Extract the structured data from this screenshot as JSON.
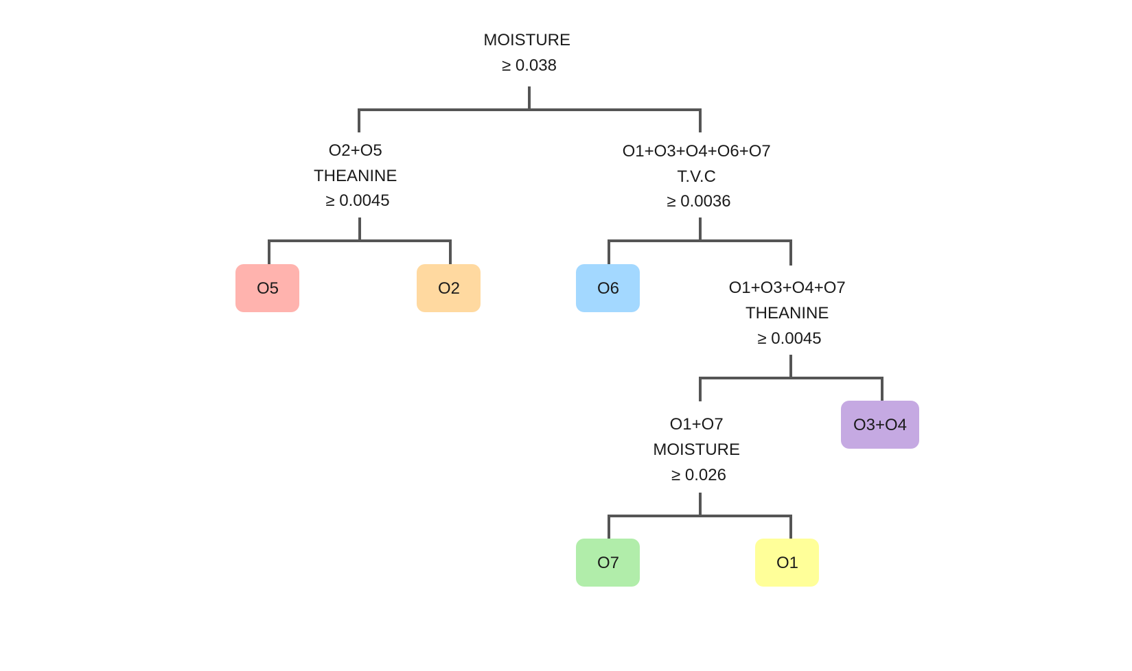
{
  "diagram": {
    "type": "decision-tree",
    "line_color": "#555555",
    "splits": [
      {
        "id": "root",
        "lines": [
          "MOISTURE",
          "≥ 0.038"
        ]
      },
      {
        "id": "left",
        "lines": [
          "O2+O5",
          "THEANINE",
          "≥ 0.0045"
        ]
      },
      {
        "id": "right",
        "lines": [
          "O1+O3+O4+O6+O7",
          "T.V.C",
          "≥ 0.0036"
        ]
      },
      {
        "id": "right-right",
        "lines": [
          "O1+O3+O4+O7",
          "THEANINE",
          "≥ 0.0045"
        ]
      },
      {
        "id": "deep",
        "lines": [
          "O1+O7",
          "MOISTURE",
          "≥ 0.026"
        ]
      }
    ],
    "leaves": [
      {
        "id": "o5",
        "label": "O5",
        "color": "#FFB3AE"
      },
      {
        "id": "o2",
        "label": "O2",
        "color": "#FFD9A0"
      },
      {
        "id": "o6",
        "label": "O6",
        "color": "#A3D8FF"
      },
      {
        "id": "o3o4",
        "label": "O3+O4",
        "color": "#C5A9E2"
      },
      {
        "id": "o7",
        "label": "O7",
        "color": "#B1EDAA"
      },
      {
        "id": "o1",
        "label": "O1",
        "color": "#FFFF99"
      }
    ]
  }
}
